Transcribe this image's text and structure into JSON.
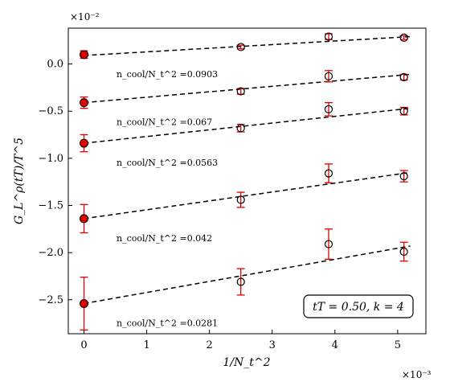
{
  "chart_data": {
    "type": "scatter",
    "title": "",
    "xlabel": "1/N_t^2",
    "ylabel": "G_L^ρ(tT)/T^5",
    "x_multiplier": "×10⁻³",
    "y_multiplier": "×10⁻²",
    "xlim": [
      -0.00025,
      0.00545
    ],
    "ylim": [
      -0.0286,
      0.0038
    ],
    "xticks": [
      0,
      0.001,
      0.002,
      0.003,
      0.004,
      0.005
    ],
    "xtick_labels": [
      "0",
      "1",
      "2",
      "3",
      "4",
      "5"
    ],
    "yticks": [
      0.0,
      -0.005,
      -0.01,
      -0.015,
      -0.02,
      -0.025
    ],
    "ytick_labels": [
      "0.0",
      "−0.5",
      "−1.0",
      "−1.5",
      "−2.0",
      "−2.5"
    ],
    "box_label": "tT = 0.50, k = 4",
    "series": [
      {
        "label": "n_cool/N_t^2 =0.0903",
        "extrap": {
          "x": 0,
          "y": 0.001,
          "err": 0.0004
        },
        "points": [
          {
            "x": 0.0025,
            "y": 0.0018,
            "err": 0.0002
          },
          {
            "x": 0.0039,
            "y": 0.0029,
            "err": 0.0003
          },
          {
            "x": 0.0051,
            "y": 0.0028,
            "err": 0.0002
          }
        ],
        "fit": [
          [
            0,
            0.0009
          ],
          [
            0.0052,
            0.0029
          ]
        ]
      },
      {
        "label": "n_cool/N_t^2 =0.067",
        "extrap": {
          "x": 0,
          "y": -0.0041,
          "err": 0.0006
        },
        "points": [
          {
            "x": 0.0025,
            "y": -0.0029,
            "err": 0.0003
          },
          {
            "x": 0.0039,
            "y": -0.0013,
            "err": 0.0006
          },
          {
            "x": 0.0051,
            "y": -0.0014,
            "err": 0.0003
          }
        ],
        "fit": [
          [
            0,
            -0.0041
          ],
          [
            0.0052,
            -0.0011
          ]
        ]
      },
      {
        "label": "n_cool/N_t^2 =0.0563",
        "extrap": {
          "x": 0,
          "y": -0.0084,
          "err": 0.0009
        },
        "points": [
          {
            "x": 0.0025,
            "y": -0.0068,
            "err": 0.0004
          },
          {
            "x": 0.0039,
            "y": -0.0048,
            "err": 0.0007
          },
          {
            "x": 0.0051,
            "y": -0.005,
            "err": 0.0004
          }
        ],
        "fit": [
          [
            0,
            -0.0084
          ],
          [
            0.0052,
            -0.0047
          ]
        ]
      },
      {
        "label": "n_cool/N_t^2 =0.042",
        "extrap": {
          "x": 0,
          "y": -0.0164,
          "err": 0.0015
        },
        "points": [
          {
            "x": 0.0025,
            "y": -0.0144,
            "err": 0.0008
          },
          {
            "x": 0.0039,
            "y": -0.0116,
            "err": 0.001
          },
          {
            "x": 0.0051,
            "y": -0.0119,
            "err": 0.0006
          }
        ],
        "fit": [
          [
            0,
            -0.0164
          ],
          [
            0.0052,
            -0.0115
          ]
        ]
      },
      {
        "label": "n_cool/N_t^2 =0.0281",
        "extrap": {
          "x": 0,
          "y": -0.0254,
          "err": 0.0028
        },
        "points": [
          {
            "x": 0.0025,
            "y": -0.0231,
            "err": 0.0014
          },
          {
            "x": 0.0039,
            "y": -0.0191,
            "err": 0.0016
          },
          {
            "x": 0.0051,
            "y": -0.0199,
            "err": 0.001
          }
        ],
        "fit": [
          [
            0,
            -0.0254
          ],
          [
            0.0052,
            -0.0193
          ]
        ]
      }
    ],
    "colors": {
      "extrap_fill": "#dd0000",
      "errorbar": "#e00000",
      "marker_edge": "#000000",
      "fit_line": "#000000"
    }
  }
}
